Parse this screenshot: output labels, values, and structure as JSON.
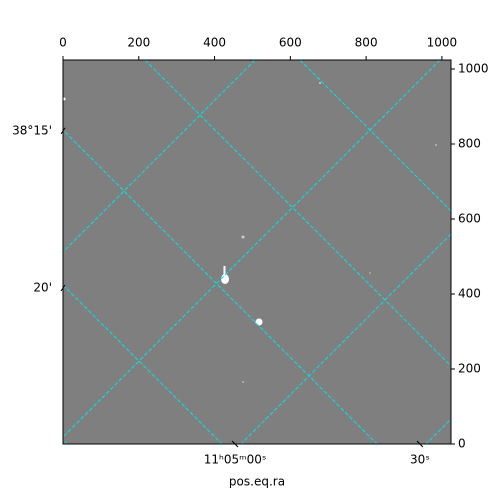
{
  "chart_data": {
    "type": "image",
    "xlim": [
      0,
      1024
    ],
    "ylim": [
      0,
      1024
    ],
    "xticks": [
      0,
      200,
      400,
      600,
      800,
      1000
    ],
    "yticks": [
      0,
      200,
      400,
      600,
      800,
      1000
    ],
    "world_yticks": [
      {
        "value": 835,
        "label": "38°15'"
      },
      {
        "value": 416,
        "label": "20'"
      }
    ],
    "world_xticks": [
      {
        "value": 454,
        "label": "11ʰ05ᵐ00ˢ"
      },
      {
        "value": 942,
        "label": "30ˢ"
      }
    ],
    "xlabel": "pos.eq.ra",
    "grid": true,
    "grid_color": "#00e5e5",
    "image_color": "#7f7f7f"
  }
}
